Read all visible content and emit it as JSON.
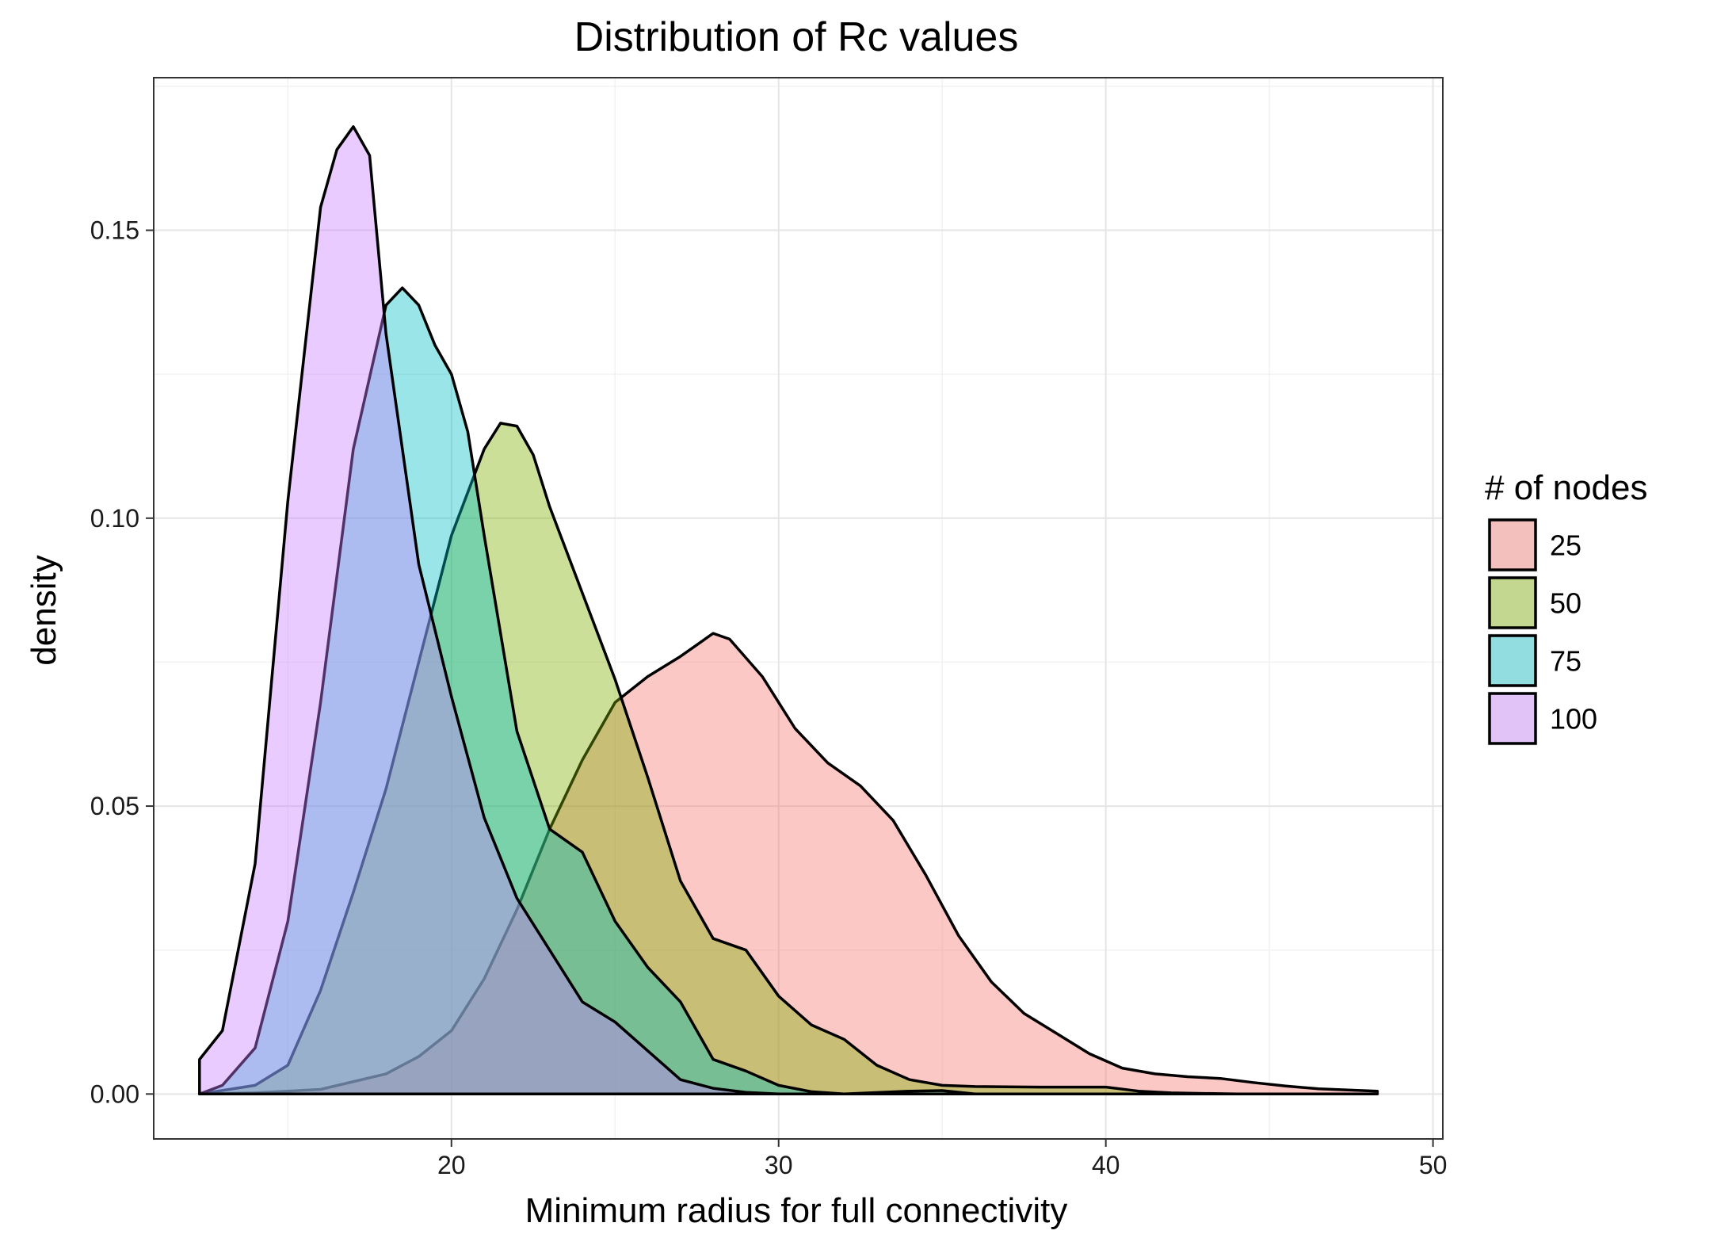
{
  "chart_data": {
    "type": "area",
    "title": "Distribution of Rc values",
    "xlabel": "Minimum radius for full connectivity",
    "ylabel": "density",
    "xlim": [
      10.9,
      50.3
    ],
    "ylim": [
      -0.0078,
      0.1765
    ],
    "x_ticks": [
      20,
      30,
      40,
      50
    ],
    "x_tick_labels": [
      "20",
      "30",
      "40",
      "50"
    ],
    "y_ticks": [
      0.0,
      0.05,
      0.1,
      0.15
    ],
    "y_tick_labels": [
      "0.00",
      "0.05",
      "0.10",
      "0.15"
    ],
    "grid": true,
    "legend": {
      "title": "# of nodes",
      "position": "right"
    },
    "series": [
      {
        "name": "25",
        "color": "#F8766D",
        "points": [
          [
            12.3,
            0.0
          ],
          [
            14,
            0.0002
          ],
          [
            16,
            0.0008
          ],
          [
            18,
            0.0035
          ],
          [
            19,
            0.0065
          ],
          [
            20,
            0.011
          ],
          [
            21,
            0.02
          ],
          [
            22,
            0.032
          ],
          [
            23,
            0.046
          ],
          [
            24,
            0.058
          ],
          [
            25,
            0.068
          ],
          [
            26,
            0.0725
          ],
          [
            27,
            0.076
          ],
          [
            28,
            0.08
          ],
          [
            28.5,
            0.079
          ],
          [
            29.5,
            0.0725
          ],
          [
            30.5,
            0.0635
          ],
          [
            31.5,
            0.0575
          ],
          [
            32.5,
            0.0535
          ],
          [
            33.5,
            0.0475
          ],
          [
            34.5,
            0.038
          ],
          [
            35.5,
            0.0275
          ],
          [
            36.5,
            0.0195
          ],
          [
            37.5,
            0.014
          ],
          [
            38.5,
            0.0105
          ],
          [
            39.5,
            0.007
          ],
          [
            40.5,
            0.0045
          ],
          [
            41.5,
            0.0035
          ],
          [
            42.5,
            0.003
          ],
          [
            43.5,
            0.0027
          ],
          [
            44.5,
            0.002
          ],
          [
            45.5,
            0.0014
          ],
          [
            46.5,
            0.0009
          ],
          [
            48.3,
            0.0005
          ]
        ]
      },
      {
        "name": "50",
        "color": "#7CAE00",
        "points": [
          [
            12.3,
            0.0
          ],
          [
            14,
            0.0015
          ],
          [
            15,
            0.005
          ],
          [
            16,
            0.018
          ],
          [
            17,
            0.035
          ],
          [
            18,
            0.053
          ],
          [
            19,
            0.075
          ],
          [
            20,
            0.097
          ],
          [
            21,
            0.112
          ],
          [
            21.5,
            0.1165
          ],
          [
            22,
            0.116
          ],
          [
            22.5,
            0.111
          ],
          [
            23,
            0.102
          ],
          [
            24,
            0.087
          ],
          [
            25,
            0.072
          ],
          [
            26,
            0.055
          ],
          [
            27,
            0.037
          ],
          [
            28,
            0.027
          ],
          [
            29,
            0.025
          ],
          [
            30,
            0.017
          ],
          [
            31,
            0.012
          ],
          [
            32,
            0.0095
          ],
          [
            33,
            0.005
          ],
          [
            34,
            0.0025
          ],
          [
            35,
            0.0015
          ],
          [
            36,
            0.0013
          ],
          [
            38,
            0.0012
          ],
          [
            40,
            0.0012
          ],
          [
            41,
            0.0005
          ],
          [
            42,
            0.0002
          ],
          [
            44,
            0.0
          ]
        ]
      },
      {
        "name": "75",
        "color": "#00BFC4",
        "points": [
          [
            12.3,
            0.0
          ],
          [
            13,
            0.0015
          ],
          [
            14,
            0.008
          ],
          [
            15,
            0.03
          ],
          [
            16,
            0.068
          ],
          [
            17,
            0.112
          ],
          [
            18,
            0.137
          ],
          [
            18.5,
            0.14
          ],
          [
            19,
            0.137
          ],
          [
            19.5,
            0.13
          ],
          [
            20,
            0.125
          ],
          [
            20.5,
            0.115
          ],
          [
            21,
            0.097
          ],
          [
            22,
            0.063
          ],
          [
            23,
            0.046
          ],
          [
            24,
            0.042
          ],
          [
            25,
            0.03
          ],
          [
            26,
            0.022
          ],
          [
            27,
            0.016
          ],
          [
            28,
            0.006
          ],
          [
            29,
            0.004
          ],
          [
            30,
            0.0015
          ],
          [
            31,
            0.0004
          ],
          [
            32,
            0.0
          ],
          [
            34,
            0.0005
          ],
          [
            35,
            0.0006
          ],
          [
            36,
            0.0
          ]
        ]
      },
      {
        "name": "100",
        "color": "#C77CFF",
        "points": [
          [
            12.3,
            0.006
          ],
          [
            13,
            0.011
          ],
          [
            14,
            0.04
          ],
          [
            15,
            0.103
          ],
          [
            16,
            0.154
          ],
          [
            16.5,
            0.164
          ],
          [
            17,
            0.168
          ],
          [
            17.5,
            0.163
          ],
          [
            18,
            0.132
          ],
          [
            19,
            0.092
          ],
          [
            20,
            0.069
          ],
          [
            21,
            0.048
          ],
          [
            22,
            0.034
          ],
          [
            23,
            0.025
          ],
          [
            24,
            0.016
          ],
          [
            25,
            0.0125
          ],
          [
            26,
            0.0075
          ],
          [
            27,
            0.0025
          ],
          [
            28,
            0.001
          ],
          [
            29,
            0.0003
          ],
          [
            30,
            0.0
          ]
        ]
      }
    ]
  }
}
